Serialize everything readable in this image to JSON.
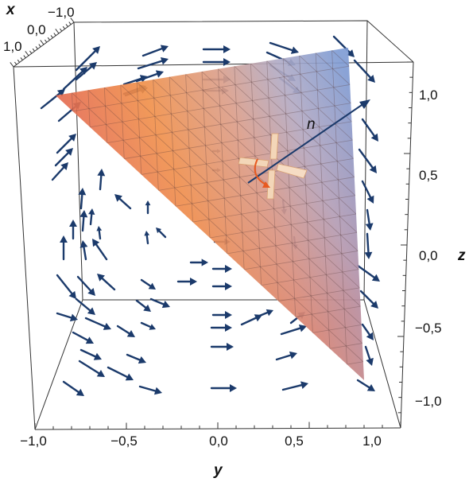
{
  "axes": {
    "x": {
      "label": "x",
      "ticks": [
        "−1,0",
        "0,0",
        "1,0"
      ]
    },
    "y": {
      "label": "y",
      "ticks": [
        "−1,0",
        "−0,5",
        "0,0",
        "0,5",
        "1,0"
      ]
    },
    "z": {
      "label": "z",
      "ticks": [
        "1,0",
        "0,5",
        "0,0",
        "−0,5",
        "−1,0"
      ]
    }
  },
  "normal_label": "n",
  "colors": {
    "arrow": "#1b3a6b",
    "surface_warm": "#e2614a",
    "surface_orange": "#f08a3e",
    "surface_cool": "#6f98d8",
    "box": "#333333"
  }
}
